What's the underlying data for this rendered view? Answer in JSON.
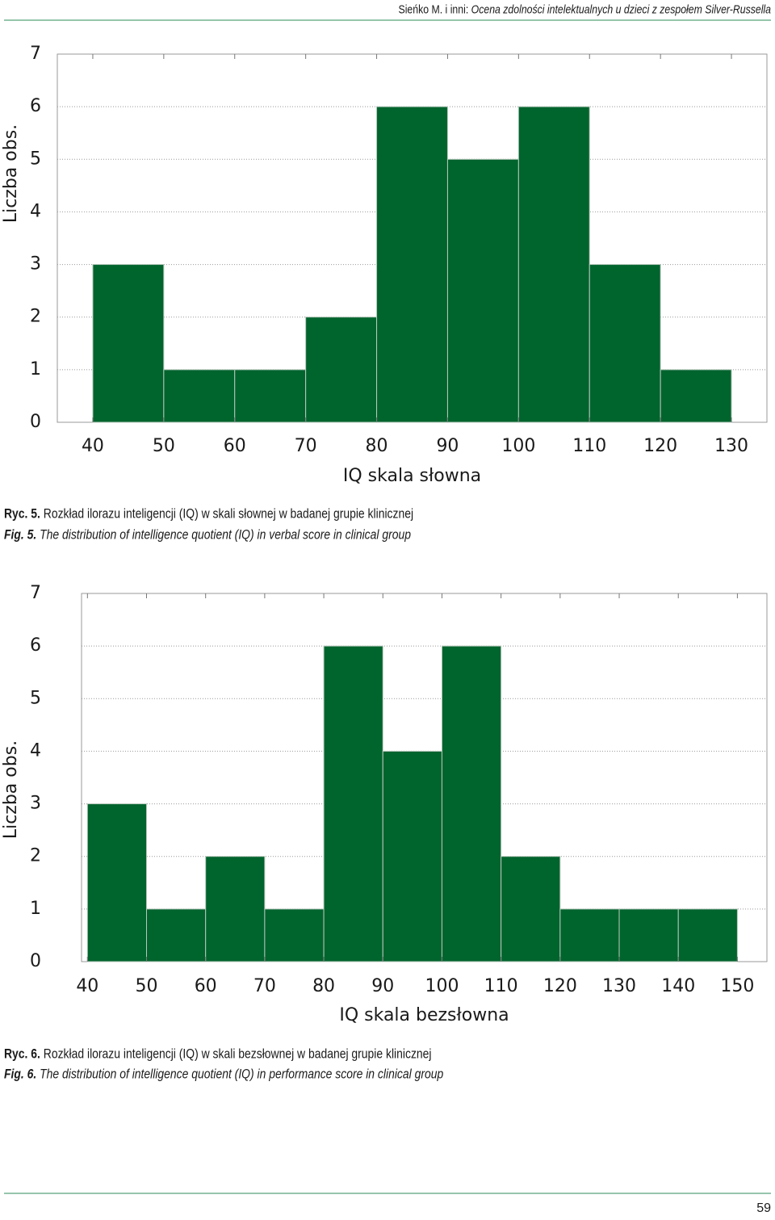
{
  "header": {
    "author": "Sieńko M. i inni:",
    "title": "Ocena zdolności intelektualnych u dzieci z zespołem Silver-Russella"
  },
  "chart_data": [
    {
      "type": "histogram",
      "xlabel": "IQ skala słowna",
      "ylabel": "Liczba obs.",
      "bins": [
        40,
        50,
        60,
        70,
        80,
        90,
        100,
        110,
        120,
        130
      ],
      "values": [
        3,
        1,
        1,
        2,
        6,
        5,
        6,
        3,
        1
      ],
      "color": "#00642d",
      "xlim": [
        35,
        135
      ],
      "xticks": [
        40,
        50,
        60,
        70,
        80,
        90,
        100,
        110,
        120,
        130
      ],
      "ylim": [
        0,
        7
      ],
      "yticks": [
        0,
        1,
        2,
        3,
        4,
        5,
        6,
        7
      ],
      "grid": true
    },
    {
      "type": "histogram",
      "xlabel": "IQ skala bezsłowna",
      "ylabel": "Liczba obs.",
      "bins": [
        40,
        50,
        60,
        70,
        80,
        90,
        100,
        110,
        120,
        130,
        140,
        150
      ],
      "values": [
        3,
        1,
        2,
        1,
        6,
        4,
        6,
        2,
        1,
        1,
        1
      ],
      "color": "#00642d",
      "xlim": [
        39,
        155
      ],
      "xticks": [
        40,
        50,
        60,
        70,
        80,
        90,
        100,
        110,
        120,
        130,
        140,
        150
      ],
      "ylim": [
        0,
        7
      ],
      "yticks": [
        0,
        1,
        2,
        3,
        4,
        5,
        6,
        7
      ],
      "grid": true
    }
  ],
  "captions": [
    {
      "label": "Ryc. 5.",
      "text": "Rozkład ilorazu inteligencji (IQ) w skali słownej w badanej grupie klinicznej"
    },
    {
      "label": "Fig. 5.",
      "text": "The distribution of intelligence quotient (IQ) in verbal score in clinical group"
    },
    {
      "label": "Ryc. 6.",
      "text": "Rozkład ilorazu inteligencji (IQ) w skali bezsłownej w badanej grupie klinicznej"
    },
    {
      "label": "Fig. 6.",
      "text": "The distribution of intelligence quotient (IQ) in performance score in clinical group"
    }
  ],
  "page_number": "59"
}
